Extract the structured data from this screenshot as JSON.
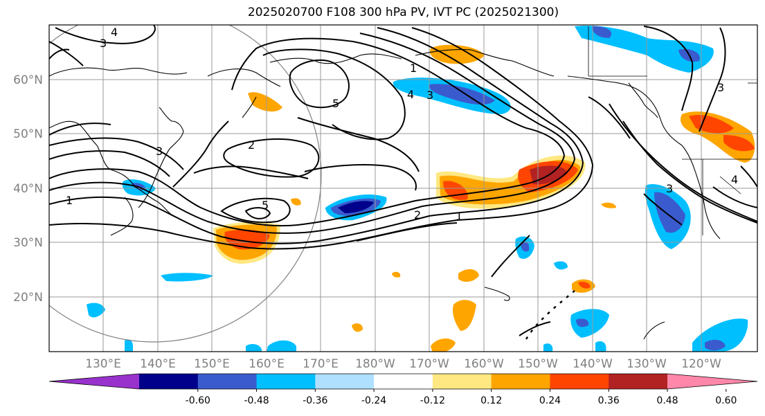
{
  "title": "2025020700 F108 300 hPa PV, IVT PC (2025021300)",
  "lat_labels": [
    "60°N",
    "50°N",
    "40°N",
    "30°N",
    "20°N"
  ],
  "lon_labels": [
    "130°E",
    "140°E",
    "150°E",
    "160°E",
    "170°E",
    "180°W",
    "170°W",
    "160°W",
    "150°W",
    "140°W",
    "130°W",
    "120°W"
  ],
  "colorbar": {
    "colors": [
      "#9932cc",
      "#00008b",
      "#3a5bcd",
      "#00bfff",
      "#b0e0ff",
      "#ffffff",
      "#ffe882",
      "#ffa500",
      "#ff4500",
      "#b22222",
      "#ff88aa"
    ],
    "tick_labels": [
      "-0.60",
      "-0.48",
      "-0.36",
      "-0.24",
      "-0.12",
      "0.12",
      "0.24",
      "0.36",
      "0.48",
      "0.60"
    ]
  },
  "contour_labels": [
    "4",
    "3",
    "1",
    "3",
    "5",
    "2",
    "3",
    "1",
    "5",
    "2",
    "1",
    "4",
    "3",
    "3",
    "4"
  ]
}
